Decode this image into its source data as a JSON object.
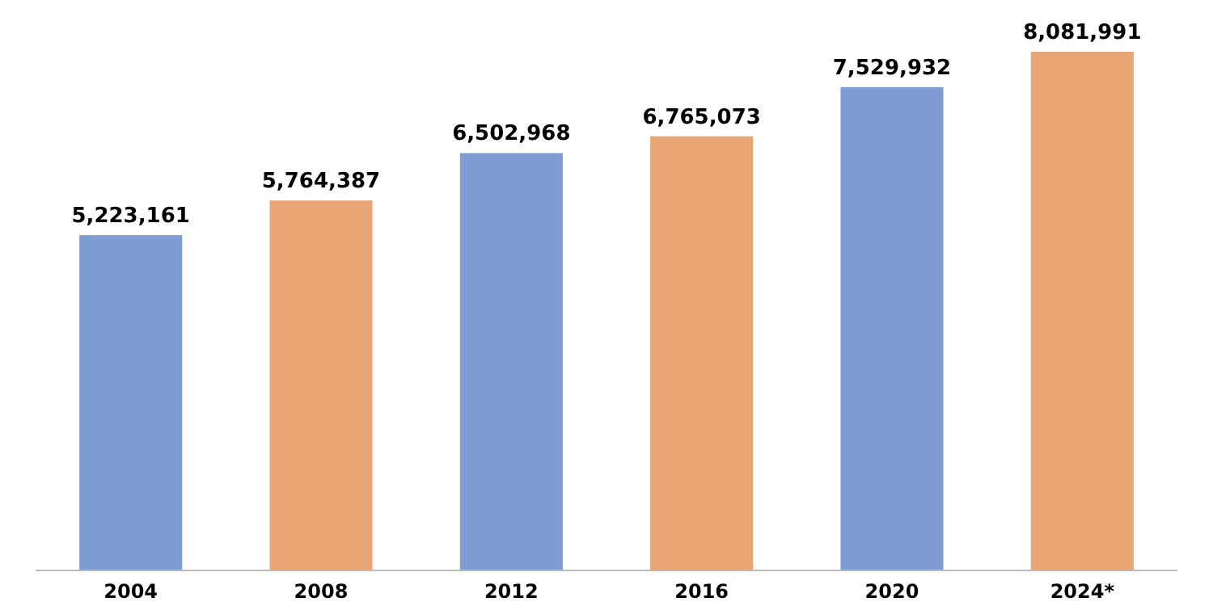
{
  "chart_data": {
    "type": "bar",
    "categories": [
      "2004",
      "2008",
      "2012",
      "2016",
      "2020",
      "2024*"
    ],
    "values": [
      5223161,
      5764387,
      6502968,
      6765073,
      7529932,
      8081991
    ],
    "value_labels": [
      "5,223,161",
      "5,764,387",
      "6,502,968",
      "6,765,073",
      "7,529,932",
      "8,081,991"
    ],
    "colors": [
      "#7f9bd3",
      "#e8a677",
      "#7f9bd3",
      "#e8a677",
      "#7f9bd3",
      "#e8a677"
    ]
  }
}
